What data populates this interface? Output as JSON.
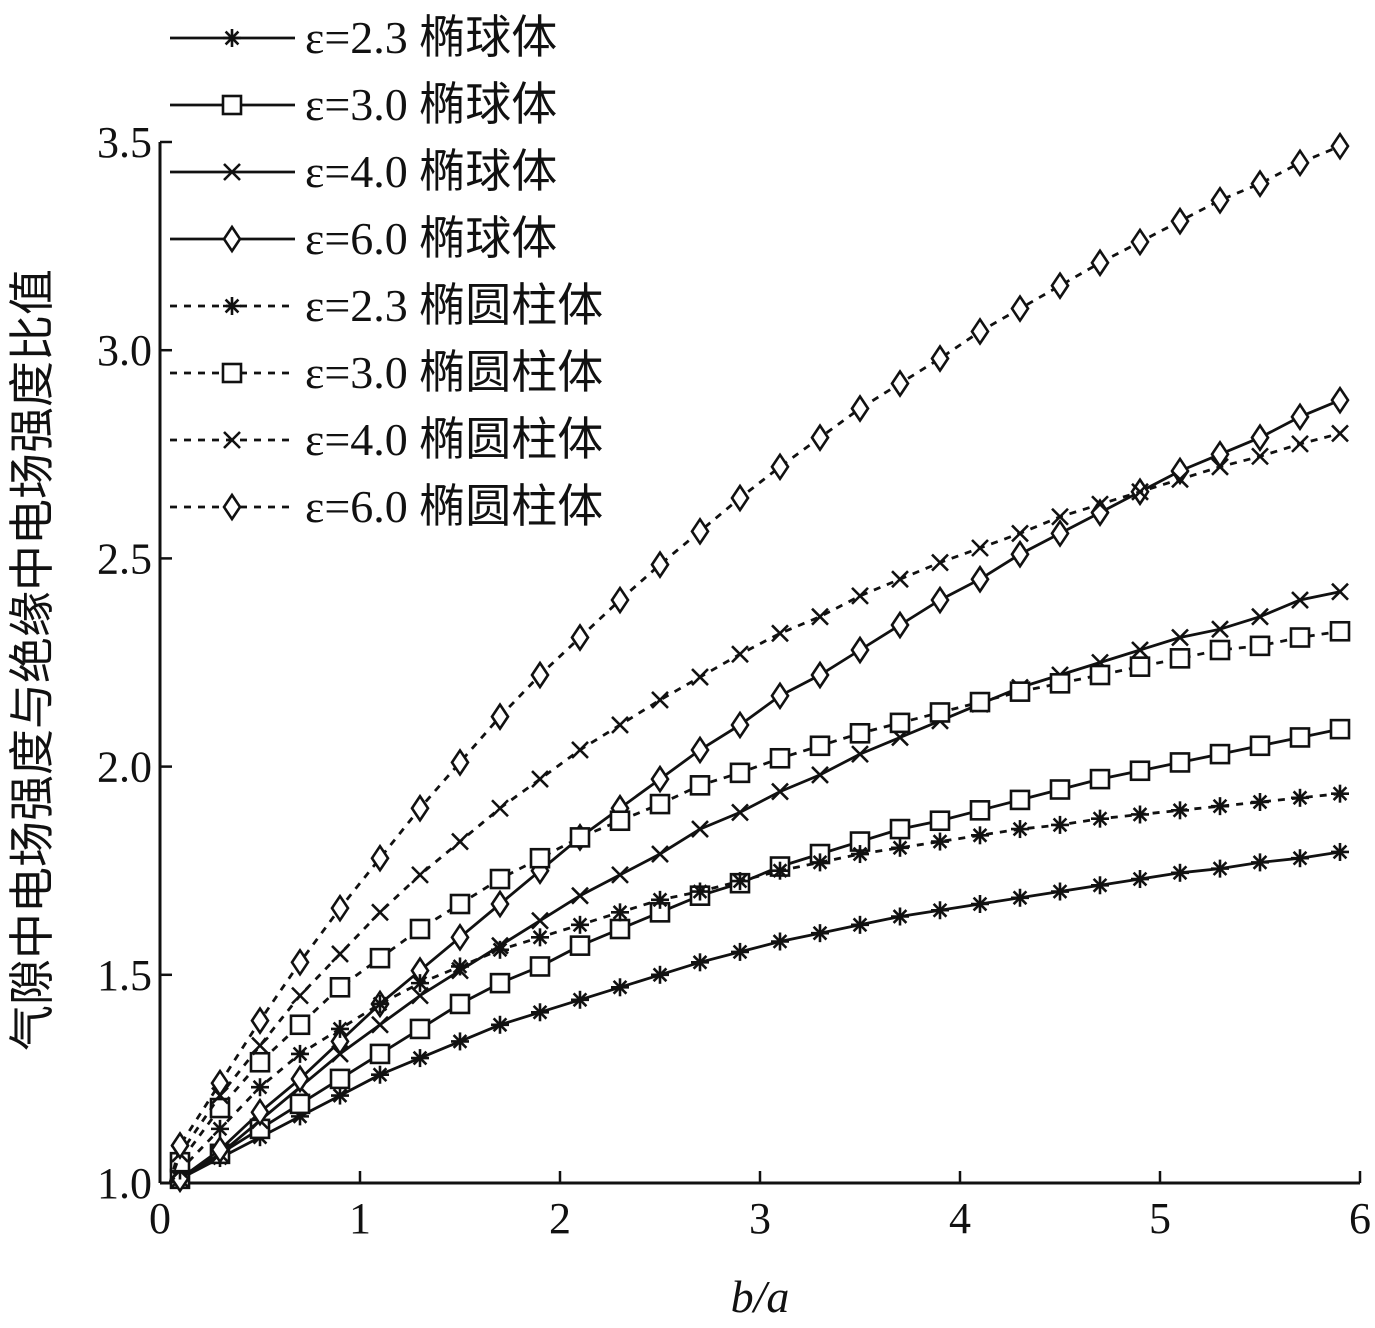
{
  "chart_data": {
    "type": "line",
    "title": "",
    "xlabel": "b/a",
    "ylabel": "气隙中电场强度与绝缘中电场强度比值",
    "xlim": [
      0,
      6
    ],
    "ylim": [
      1.0,
      3.5
    ],
    "xticks": [
      "0",
      "1",
      "2",
      "3",
      "4",
      "5",
      "6"
    ],
    "yticks": [
      "1.0",
      "1.5",
      "2.0",
      "2.5",
      "3.0",
      "3.5"
    ],
    "legend_position": "top-left",
    "grid": false,
    "x": [
      0.1,
      0.3,
      0.5,
      0.7,
      0.9,
      1.1,
      1.3,
      1.5,
      1.7,
      1.9,
      2.1,
      2.3,
      2.5,
      2.7,
      2.9,
      3.1,
      3.3,
      3.5,
      3.7,
      3.9,
      4.1,
      4.3,
      4.5,
      4.7,
      4.9,
      5.1,
      5.3,
      5.5,
      5.7,
      5.9
    ],
    "series": [
      {
        "name": "ε=2.3 椭球体",
        "line": "solid",
        "marker": "asterisk",
        "values": [
          1.01,
          1.06,
          1.11,
          1.16,
          1.21,
          1.26,
          1.3,
          1.34,
          1.38,
          1.41,
          1.44,
          1.47,
          1.5,
          1.53,
          1.555,
          1.58,
          1.6,
          1.62,
          1.64,
          1.655,
          1.67,
          1.685,
          1.7,
          1.715,
          1.73,
          1.745,
          1.755,
          1.77,
          1.78,
          1.795
        ]
      },
      {
        "name": "ε=3.0 椭球体",
        "line": "solid",
        "marker": "square",
        "values": [
          1.01,
          1.07,
          1.13,
          1.19,
          1.25,
          1.31,
          1.37,
          1.43,
          1.48,
          1.52,
          1.57,
          1.61,
          1.65,
          1.69,
          1.72,
          1.76,
          1.79,
          1.82,
          1.85,
          1.87,
          1.895,
          1.92,
          1.945,
          1.97,
          1.99,
          2.01,
          2.03,
          2.05,
          2.07,
          2.09
        ]
      },
      {
        "name": "ε=4.0 椭球体",
        "line": "solid",
        "marker": "x",
        "values": [
          1.01,
          1.07,
          1.15,
          1.23,
          1.31,
          1.38,
          1.45,
          1.51,
          1.57,
          1.63,
          1.69,
          1.74,
          1.79,
          1.85,
          1.89,
          1.94,
          1.98,
          2.03,
          2.07,
          2.11,
          2.15,
          2.19,
          2.22,
          2.25,
          2.28,
          2.31,
          2.33,
          2.36,
          2.4,
          2.42
        ]
      },
      {
        "name": "ε=6.0 椭球体",
        "line": "solid",
        "marker": "diamond",
        "values": [
          1.01,
          1.08,
          1.17,
          1.25,
          1.34,
          1.43,
          1.51,
          1.59,
          1.67,
          1.75,
          1.83,
          1.9,
          1.97,
          2.04,
          2.1,
          2.17,
          2.22,
          2.28,
          2.34,
          2.4,
          2.45,
          2.51,
          2.56,
          2.61,
          2.66,
          2.71,
          2.75,
          2.79,
          2.84,
          2.88
        ]
      },
      {
        "name": "ε=2.3 椭圆柱体",
        "line": "dotted",
        "marker": "asterisk",
        "values": [
          1.03,
          1.13,
          1.23,
          1.31,
          1.37,
          1.43,
          1.48,
          1.52,
          1.56,
          1.59,
          1.62,
          1.65,
          1.68,
          1.7,
          1.725,
          1.75,
          1.77,
          1.79,
          1.805,
          1.82,
          1.835,
          1.85,
          1.86,
          1.875,
          1.885,
          1.895,
          1.905,
          1.915,
          1.925,
          1.935
        ]
      },
      {
        "name": "ε=3.0 椭圆柱体",
        "line": "dotted",
        "marker": "square",
        "values": [
          1.05,
          1.18,
          1.29,
          1.38,
          1.47,
          1.54,
          1.61,
          1.67,
          1.73,
          1.78,
          1.83,
          1.87,
          1.91,
          1.955,
          1.985,
          2.02,
          2.05,
          2.08,
          2.105,
          2.13,
          2.155,
          2.18,
          2.2,
          2.22,
          2.24,
          2.26,
          2.28,
          2.29,
          2.31,
          2.325
        ]
      },
      {
        "name": "ε=4.0 椭圆柱体",
        "line": "dotted",
        "marker": "x",
        "values": [
          1.07,
          1.21,
          1.33,
          1.45,
          1.55,
          1.65,
          1.74,
          1.82,
          1.9,
          1.97,
          2.04,
          2.1,
          2.16,
          2.215,
          2.27,
          2.32,
          2.36,
          2.41,
          2.45,
          2.49,
          2.525,
          2.56,
          2.6,
          2.63,
          2.66,
          2.69,
          2.72,
          2.745,
          2.775,
          2.8
        ]
      },
      {
        "name": "ε=6.0 椭圆柱体",
        "line": "dotted",
        "marker": "diamond",
        "values": [
          1.09,
          1.24,
          1.39,
          1.53,
          1.66,
          1.78,
          1.9,
          2.01,
          2.12,
          2.22,
          2.31,
          2.4,
          2.485,
          2.565,
          2.645,
          2.72,
          2.79,
          2.86,
          2.92,
          2.98,
          3.045,
          3.1,
          3.155,
          3.21,
          3.26,
          3.31,
          3.36,
          3.4,
          3.45,
          3.49
        ]
      }
    ]
  }
}
